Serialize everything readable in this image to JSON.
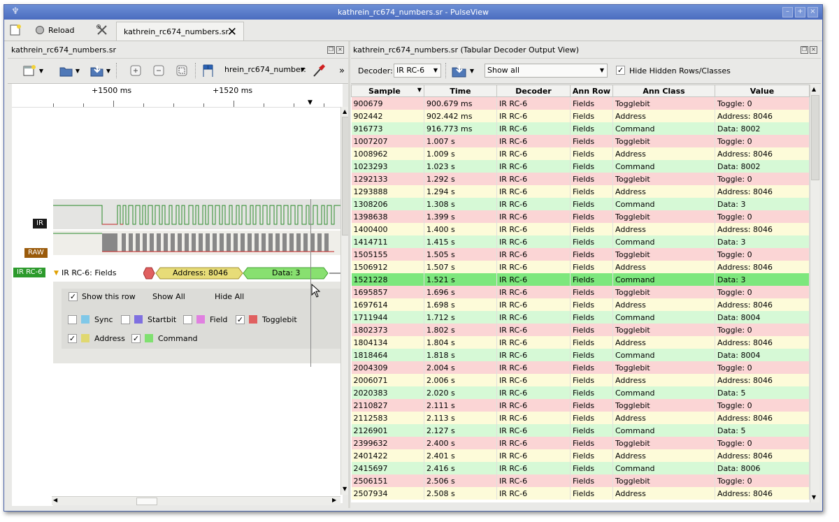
{
  "window": {
    "title": "kathrein_rc674_numbers.sr - PulseView",
    "app_icon": "pulseview-logo-icon",
    "buttons": [
      "–",
      "+",
      "×"
    ]
  },
  "maintoolbar": {
    "new_icon": "new-session-icon",
    "reload_label": "Reload",
    "reload_icon": "reload-icon",
    "settings_icon": "settings-icon"
  },
  "doctab": {
    "label": "kathrein_rc674_numbers.sr",
    "close_icon": "close-icon"
  },
  "trace_panel": {
    "title": "kathrein_rc674_numbers.sr",
    "device_combo": "hrein_rc674_number:",
    "more": "»",
    "ruler": {
      "label_1": "+1500 ms",
      "label_2": "+1520 ms"
    },
    "channels": {
      "ir": "IR",
      "raw": "RAW",
      "decoder": "IR RC-6"
    },
    "decoder_row_label": "IR RC-6: Fields",
    "annotations": {
      "address": "Address: 8046",
      "data": "Data: 3"
    },
    "popup": {
      "show_row": "Show this row",
      "show_all": "Show All",
      "hide_all": "Hide All",
      "classes": [
        {
          "label": "Sync",
          "color": "#80c8e8",
          "checked": false
        },
        {
          "label": "Startbit",
          "color": "#7f70e0",
          "checked": false
        },
        {
          "label": "Field",
          "color": "#e080e0",
          "checked": false
        },
        {
          "label": "Togglebit",
          "color": "#e06060",
          "checked": true
        },
        {
          "label": "Address",
          "color": "#e0d870",
          "checked": true
        },
        {
          "label": "Command",
          "color": "#80e070",
          "checked": true
        }
      ]
    }
  },
  "table_panel": {
    "title": "kathrein_rc674_numbers.sr (Tabular Decoder Output View)",
    "decoder_label": "Decoder:",
    "decoder_value": "IR RC-6",
    "filter_value": "Show all",
    "hide_hidden_label": "Hide Hidden Rows/Classes",
    "columns": [
      "Sample",
      "Time",
      "Decoder",
      "Ann Row",
      "Ann Class",
      "Value"
    ],
    "rows": [
      [
        "900679",
        "900.679 ms",
        "IR RC-6",
        "Fields",
        "Togglebit",
        "Toggle: 0"
      ],
      [
        "902442",
        "902.442 ms",
        "IR RC-6",
        "Fields",
        "Address",
        "Address: 8046"
      ],
      [
        "916773",
        "916.773 ms",
        "IR RC-6",
        "Fields",
        "Command",
        "Data: 8002"
      ],
      [
        "1007207",
        "1.007 s",
        "IR RC-6",
        "Fields",
        "Togglebit",
        "Toggle: 0"
      ],
      [
        "1008962",
        "1.009 s",
        "IR RC-6",
        "Fields",
        "Address",
        "Address: 8046"
      ],
      [
        "1023293",
        "1.023 s",
        "IR RC-6",
        "Fields",
        "Command",
        "Data: 8002"
      ],
      [
        "1292133",
        "1.292 s",
        "IR RC-6",
        "Fields",
        "Togglebit",
        "Toggle: 0"
      ],
      [
        "1293888",
        "1.294 s",
        "IR RC-6",
        "Fields",
        "Address",
        "Address: 8046"
      ],
      [
        "1308206",
        "1.308 s",
        "IR RC-6",
        "Fields",
        "Command",
        "Data: 3"
      ],
      [
        "1398638",
        "1.399 s",
        "IR RC-6",
        "Fields",
        "Togglebit",
        "Toggle: 0"
      ],
      [
        "1400400",
        "1.400 s",
        "IR RC-6",
        "Fields",
        "Address",
        "Address: 8046"
      ],
      [
        "1414711",
        "1.415 s",
        "IR RC-6",
        "Fields",
        "Command",
        "Data: 3"
      ],
      [
        "1505155",
        "1.505 s",
        "IR RC-6",
        "Fields",
        "Togglebit",
        "Toggle: 0"
      ],
      [
        "1506912",
        "1.507 s",
        "IR RC-6",
        "Fields",
        "Address",
        "Address: 8046"
      ],
      [
        "1521228",
        "1.521 s",
        "IR RC-6",
        "Fields",
        "Command",
        "Data: 3"
      ],
      [
        "1695857",
        "1.696 s",
        "IR RC-6",
        "Fields",
        "Togglebit",
        "Toggle: 0"
      ],
      [
        "1697614",
        "1.698 s",
        "IR RC-6",
        "Fields",
        "Address",
        "Address: 8046"
      ],
      [
        "1711944",
        "1.712 s",
        "IR RC-6",
        "Fields",
        "Command",
        "Data: 8004"
      ],
      [
        "1802373",
        "1.802 s",
        "IR RC-6",
        "Fields",
        "Togglebit",
        "Toggle: 0"
      ],
      [
        "1804134",
        "1.804 s",
        "IR RC-6",
        "Fields",
        "Address",
        "Address: 8046"
      ],
      [
        "1818464",
        "1.818 s",
        "IR RC-6",
        "Fields",
        "Command",
        "Data: 8004"
      ],
      [
        "2004309",
        "2.004 s",
        "IR RC-6",
        "Fields",
        "Togglebit",
        "Toggle: 0"
      ],
      [
        "2006071",
        "2.006 s",
        "IR RC-6",
        "Fields",
        "Address",
        "Address: 8046"
      ],
      [
        "2020383",
        "2.020 s",
        "IR RC-6",
        "Fields",
        "Command",
        "Data: 5"
      ],
      [
        "2110827",
        "2.111 s",
        "IR RC-6",
        "Fields",
        "Togglebit",
        "Toggle: 0"
      ],
      [
        "2112583",
        "2.113 s",
        "IR RC-6",
        "Fields",
        "Address",
        "Address: 8046"
      ],
      [
        "2126901",
        "2.127 s",
        "IR RC-6",
        "Fields",
        "Command",
        "Data: 5"
      ],
      [
        "2399632",
        "2.400 s",
        "IR RC-6",
        "Fields",
        "Togglebit",
        "Toggle: 0"
      ],
      [
        "2401422",
        "2.401 s",
        "IR RC-6",
        "Fields",
        "Address",
        "Address: 8046"
      ],
      [
        "2415697",
        "2.416 s",
        "IR RC-6",
        "Fields",
        "Command",
        "Data: 8006"
      ],
      [
        "2506151",
        "2.506 s",
        "IR RC-6",
        "Fields",
        "Togglebit",
        "Toggle: 0"
      ],
      [
        "2507934",
        "2.508 s",
        "IR RC-6",
        "Fields",
        "Address",
        "Address: 8046"
      ]
    ],
    "selected_row": 14
  }
}
